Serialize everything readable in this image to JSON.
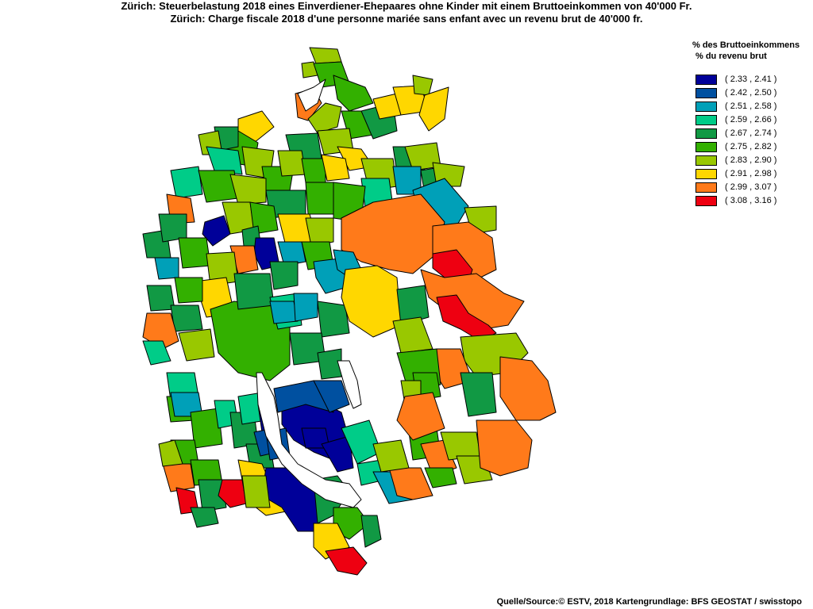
{
  "title": {
    "line1": "Zürich: Steuerbelastung 2018 eines Einverdiener-Ehepaares ohne Kinder mit einem Bruttoeinkommen von 40'000 Fr.",
    "line2": "Zürich: Charge fiscale 2018 d'une personne mariée sans enfant avec un revenu brut de 40'000 fr."
  },
  "legend": {
    "header_line1": "% des Bruttoeinkommens",
    "header_line2": "% du revenu brut",
    "classes": [
      {
        "label": "( 2.33 , 2.41 )",
        "color": "#000099"
      },
      {
        "label": "( 2.42 , 2.50 )",
        "color": "#0050a0"
      },
      {
        "label": "( 2.51 , 2.58 )",
        "color": "#00a0b8"
      },
      {
        "label": "( 2.59 , 2.66 )",
        "color": "#00cc88"
      },
      {
        "label": "( 2.67 , 2.74 )",
        "color": "#119944"
      },
      {
        "label": "( 2.75 , 2.82 )",
        "color": "#33b000"
      },
      {
        "label": "( 2.83 , 2.90 )",
        "color": "#99c800"
      },
      {
        "label": "( 2.91 , 2.98 )",
        "color": "#ffd700"
      },
      {
        "label": "( 2.99 , 3.07 )",
        "color": "#ff7a1a"
      },
      {
        "label": "( 3.08 , 3.16 )",
        "color": "#ee0011"
      }
    ]
  },
  "source": "Quelle/Source:© ESTV, 2018 Kartengrundlage: BFS GEOSTAT / swisstopo",
  "lake_color": "#ffffff"
}
